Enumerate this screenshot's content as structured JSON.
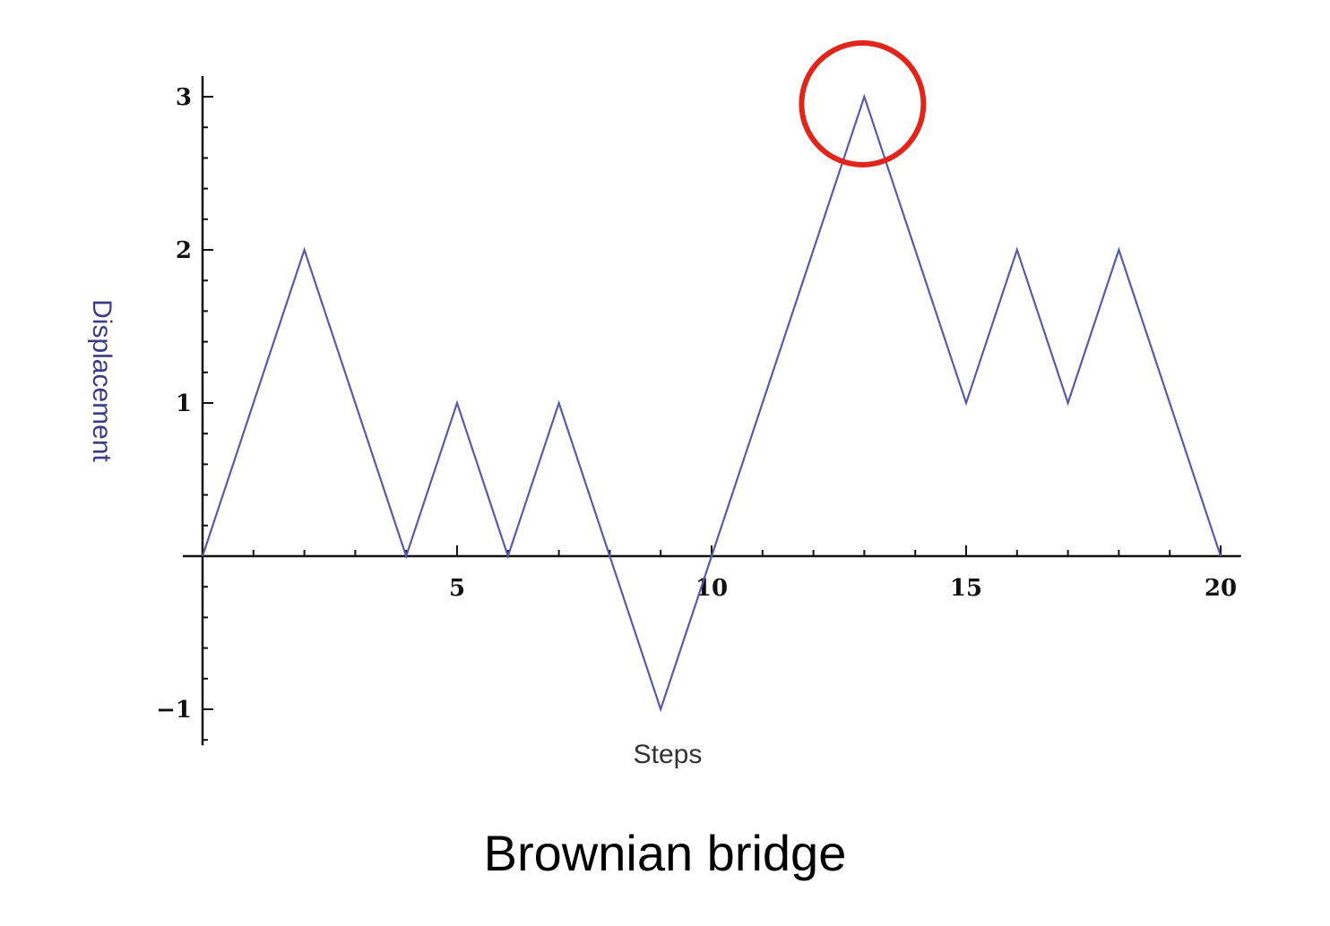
{
  "chart_data": {
    "type": "line",
    "title": "",
    "xlabel": "Steps",
    "ylabel": "Displacement",
    "x": [
      0,
      1,
      2,
      3,
      4,
      5,
      6,
      7,
      8,
      9,
      10,
      11,
      12,
      13,
      14,
      15,
      16,
      17,
      18,
      19,
      20
    ],
    "series": [
      {
        "values": [
          0,
          1,
          2,
          1,
          0,
          1,
          0,
          1,
          0,
          -1,
          0,
          1,
          2,
          3,
          2,
          1,
          2,
          1,
          2,
          1,
          0
        ]
      }
    ],
    "xlim": [
      0,
      20.4
    ],
    "ylim": [
      -1.2,
      3.1
    ],
    "xticks": [
      5,
      10,
      15,
      20
    ],
    "xtick_labels": [
      "5",
      "10",
      "15",
      "20"
    ],
    "yticks": [
      -1,
      1,
      2,
      3
    ],
    "ytick_labels": [
      "−1",
      "1",
      "2",
      "3"
    ],
    "grid": false,
    "annotations": [
      {
        "type": "circle",
        "x": 13,
        "y": 3,
        "color": "#e0251b"
      }
    ]
  },
  "caption": "Brownian bridge",
  "colors": {
    "line": "#5a5aa8",
    "axis": "#111111",
    "ylabel": "#3b3b86",
    "xlabel": "#333333",
    "highlight": "#e0251b"
  }
}
